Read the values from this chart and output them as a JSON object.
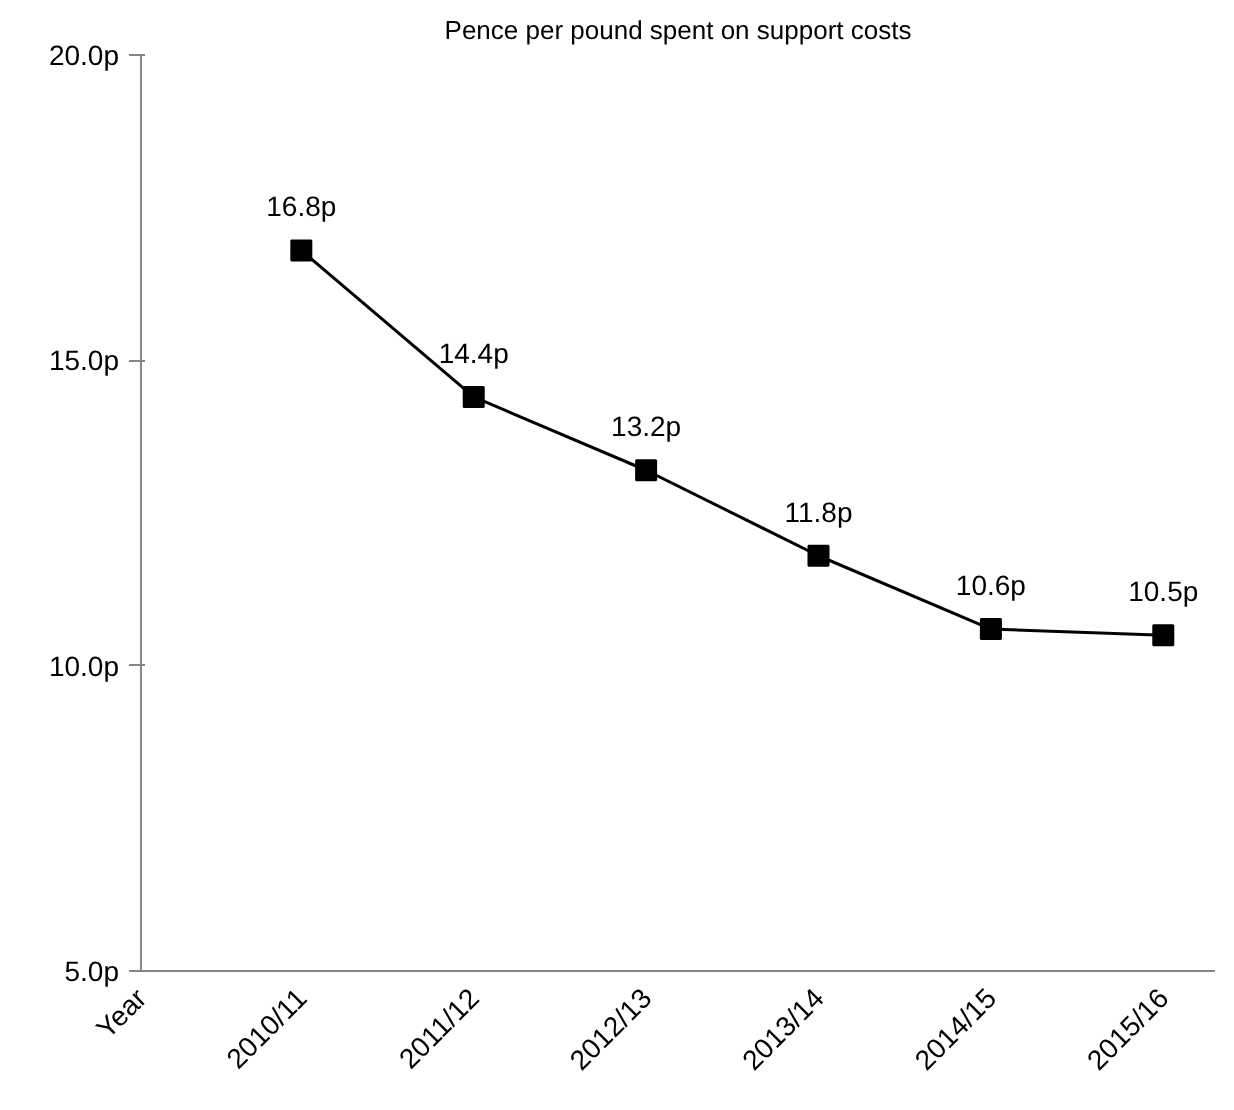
{
  "chart_data": {
    "type": "line",
    "title": "Pence per pound spent on support costs",
    "xlabel": "Year",
    "categories": [
      "2010/11",
      "2011/12",
      "2012/13",
      "2013/14",
      "2014/15",
      "2015/16"
    ],
    "values": [
      16.8,
      14.4,
      13.2,
      11.8,
      10.6,
      10.5
    ],
    "value_labels": [
      "16.8p",
      "14.4p",
      "13.2p",
      "11.8p",
      "10.6p",
      "10.5p"
    ],
    "color": "#000000",
    "marker": "square",
    "line_style": "solid",
    "grid": false,
    "ylim": [
      5,
      20
    ],
    "yticks": [
      {
        "value": 5,
        "label": "5.0p"
      },
      {
        "value": 10,
        "label": "10.0p"
      },
      {
        "value": 15,
        "label": "15.0p"
      },
      {
        "value": 20,
        "label": "20.0p"
      }
    ]
  }
}
